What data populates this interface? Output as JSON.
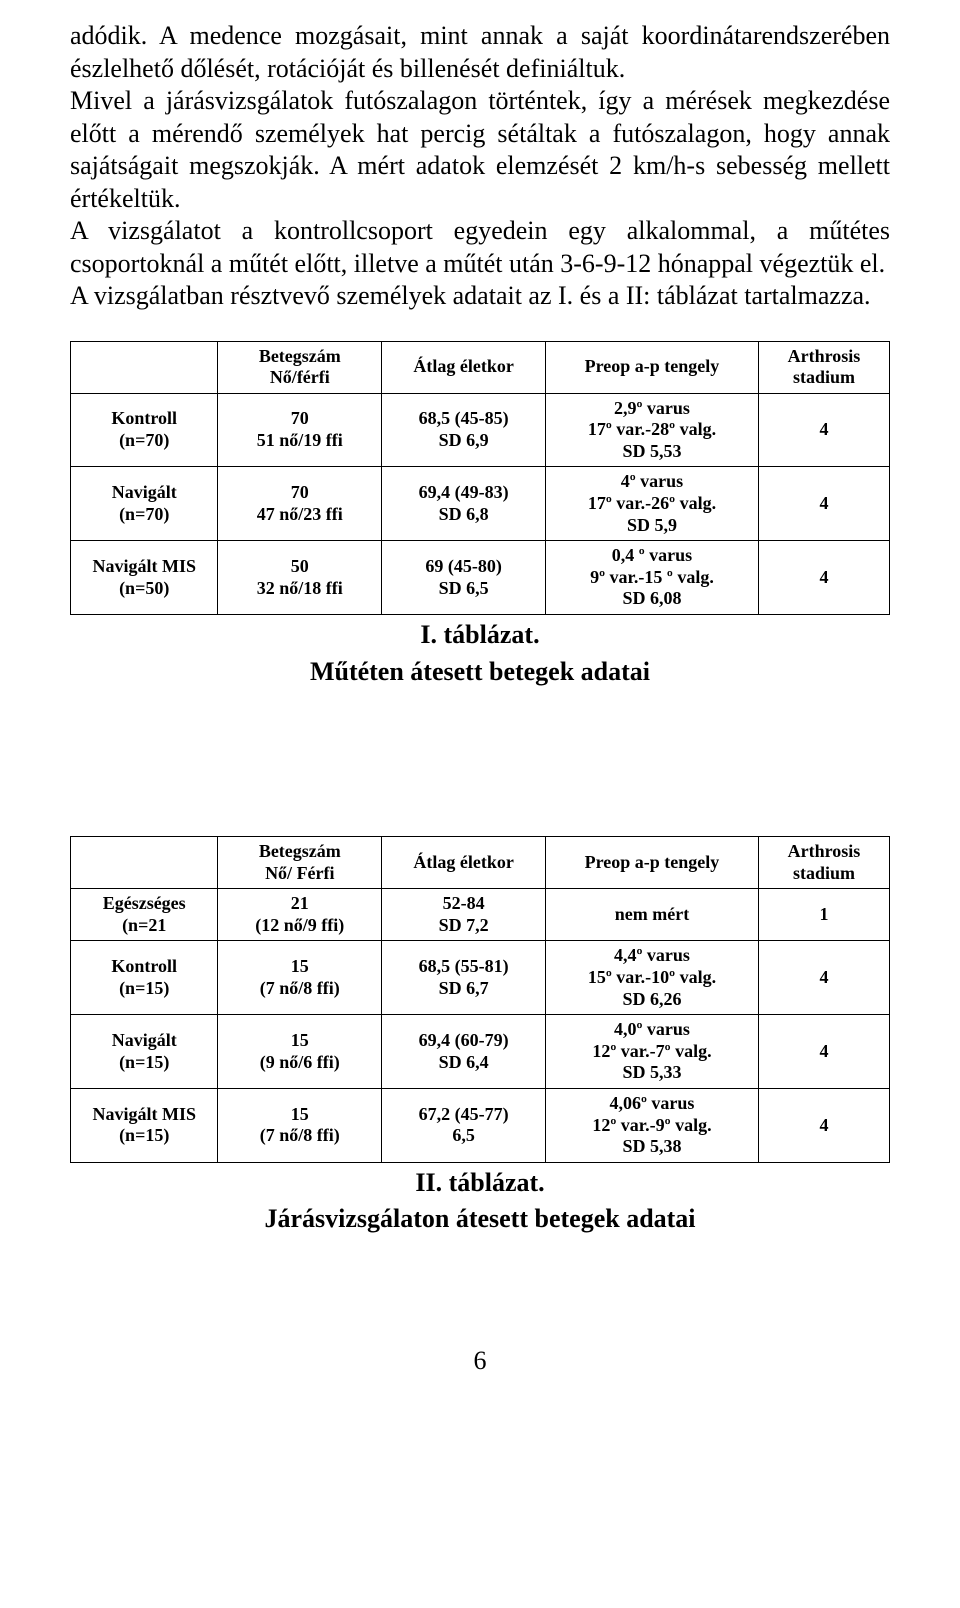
{
  "paragraphs": {
    "p1": "adódik. A medence mozgásait, mint annak a saját koordinátarendszerében észlelhető dőlését, rotációját és billenését definiáltuk.",
    "p2": "Mivel a járásvizsgálatok futószalagon történtek, így a mérések megkezdése előtt a mérendő személyek hat percig sétáltak a futószalagon, hogy annak sajátságait megszokják. A mért adatok elemzését 2 km/h-s sebesség mellett értékeltük.",
    "p3": "A vizsgálatot a kontrollcsoport egyedein egy alkalommal, a műtétes csoportoknál a műtét előtt, illetve a műtét után 3-6-9-12 hónappal végeztük el.",
    "p4": "A vizsgálatban résztvevő személyek adatait az I. és a II: táblázat tartalmazza."
  },
  "table1": {
    "headers": [
      "",
      "Betegszám\nNő/férfi",
      "Átlag életkor",
      "Preop a-p tengely",
      "Arthrosis\nstadium"
    ],
    "rows": [
      [
        "Kontroll\n(n=70)",
        "70\n51 nő/19 ffi",
        "68,5 (45-85)\nSD 6,9",
        "2,9º varus\n17º var.-28º valg.\nSD 5,53",
        "4"
      ],
      [
        "Navigált\n(n=70)",
        "70\n47 nő/23 ffi",
        "69,4 (49-83)\nSD 6,8",
        "4º varus\n17º var.-26º valg.\nSD 5,9",
        "4"
      ],
      [
        "Navigált MIS\n(n=50)",
        "50\n32 nő/18 ffi",
        "69 (45-80)\nSD 6,5",
        "0,4 º varus\n9º var.-15 º valg.\nSD 6,08",
        "4"
      ]
    ],
    "caption_line1": "I. táblázat.",
    "caption_line2": "Műtéten átesett betegek adatai"
  },
  "table2": {
    "headers": [
      "",
      "Betegszám\nNő/ Férfi",
      "Átlag életkor",
      "Preop a-p tengely",
      "Arthrosis\nstadium"
    ],
    "rows": [
      [
        "Egészséges\n(n=21",
        "21\n(12 nő/9 ffi)",
        "52-84\nSD 7,2",
        "nem mért",
        "1"
      ],
      [
        "Kontroll\n(n=15)",
        "15\n(7 nő/8 ffi)",
        "68,5 (55-81)\nSD 6,7",
        "4,4º varus\n15º var.-10º valg.\nSD 6,26",
        "4"
      ],
      [
        "Navigált\n(n=15)",
        "15\n(9 nő/6 ffi)",
        "69,4 (60-79)\nSD 6,4",
        "4,0º varus\n12º var.-7º valg.\nSD 5,33",
        "4"
      ],
      [
        "Navigált MIS\n(n=15)",
        "15\n(7 nő/8 ffi)",
        "67,2 (45-77)\n6,5",
        "4,06º varus\n12º var.-9º valg.\nSD 5,38",
        "4"
      ]
    ],
    "caption_line1": "II. táblázat.",
    "caption_line2": "Járásvizsgálaton átesett betegek adatai"
  },
  "page_number": "6"
}
